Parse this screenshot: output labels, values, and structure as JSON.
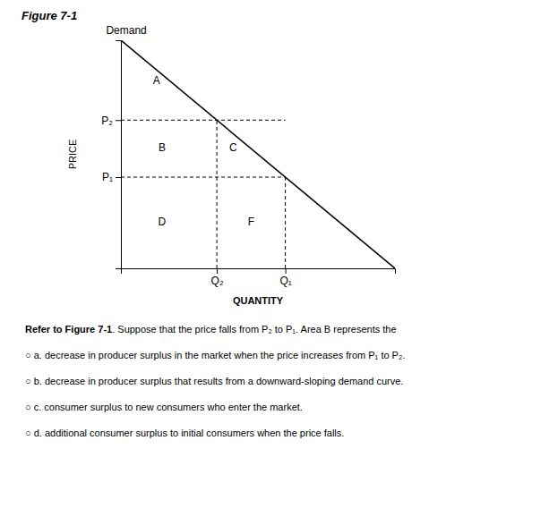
{
  "chart_data": {
    "type": "line",
    "title": "Figure 7-1",
    "x_label": "QUANTITY",
    "y_label": "PRICE",
    "xlim": [
      0,
      10
    ],
    "ylim": [
      0,
      10
    ],
    "xticks": [
      {
        "value": 3.5,
        "label": "Q₂"
      },
      {
        "value": 6.0,
        "label": "Q₁"
      }
    ],
    "yticks": [
      {
        "value": 6.5,
        "label": "P₂"
      },
      {
        "value": 4.0,
        "label": "P₁"
      }
    ],
    "grid": false,
    "series": [
      {
        "x": [
          0,
          10
        ],
        "values": [
          10,
          0
        ],
        "color": "#000000",
        "line_style": "solid"
      },
      {
        "x": [
          0,
          6.0
        ],
        "values": [
          6.5,
          6.5
        ],
        "color": "#000000",
        "line_style": "dashed"
      },
      {
        "x": [
          0,
          6.0
        ],
        "values": [
          4.0,
          4.0
        ],
        "color": "#000000",
        "line_style": "dashed"
      },
      {
        "x": [
          3.5,
          3.5
        ],
        "values": [
          0,
          6.5
        ],
        "color": "#000000",
        "line_style": "dashed"
      },
      {
        "x": [
          6.0,
          6.0
        ],
        "values": [
          0,
          4.0
        ],
        "color": "#000000",
        "line_style": "dashed"
      }
    ],
    "annotations": [
      {
        "text": "Demand",
        "x": 0.2,
        "y": 10.4
      },
      {
        "text": "A",
        "x": 1.3,
        "y": 8.2
      },
      {
        "text": "B",
        "x": 1.5,
        "y": 5.25
      },
      {
        "text": "C",
        "x": 4.1,
        "y": 5.25
      },
      {
        "text": "D",
        "x": 1.5,
        "y": 2.0
      },
      {
        "text": "F",
        "x": 4.75,
        "y": 2.0
      }
    ],
    "question": {
      "stem_bold": "Refer to Figure 7-1",
      "stem": ". Suppose that the price falls from P₂ to P₁. Area B represents the",
      "options": [
        "○ a. decrease in producer surplus in the market when the price increases from P₁ to P₂.",
        "○ b. decrease in producer surplus that results from a downward-sloping demand curve.",
        "○ c. consumer surplus to new consumers who enter the market.",
        "○ d. additional consumer surplus to initial consumers when the price falls."
      ]
    }
  }
}
